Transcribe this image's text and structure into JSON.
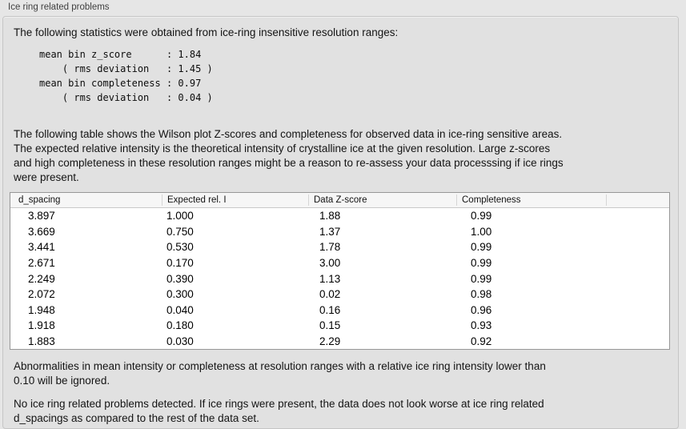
{
  "panel": {
    "title": "Ice ring related problems"
  },
  "stats": {
    "intro": "The following statistics were obtained from ice-ring insensitive resolution ranges:",
    "lines": [
      "mean bin z_score      : 1.84",
      "    ( rms deviation   : 1.45 )",
      "mean bin completeness : 0.97",
      "    ( rms deviation   : 0.04 )"
    ]
  },
  "table_intro": {
    "lines": [
      "The following table shows the Wilson plot Z-scores and completeness for observed data in ice-ring sensitive areas.",
      "The expected relative intensity is the theoretical intensity of crystalline ice at the given resolution. Large z-scores",
      "and high completeness in these resolution ranges might be a reason to re-assess your data processsing if ice rings",
      "were present."
    ]
  },
  "table": {
    "headers": [
      "d_spacing",
      "Expected rel. I",
      "Data Z-score",
      "Completeness",
      ""
    ],
    "rows": [
      [
        "3.897",
        "1.000",
        "1.88",
        "0.99"
      ],
      [
        "3.669",
        "0.750",
        "1.37",
        "1.00"
      ],
      [
        "3.441",
        "0.530",
        "1.78",
        "0.99"
      ],
      [
        "2.671",
        "0.170",
        "3.00",
        "0.99"
      ],
      [
        "2.249",
        "0.390",
        "1.13",
        "0.99"
      ],
      [
        "2.072",
        "0.300",
        "0.02",
        "0.98"
      ],
      [
        "1.948",
        "0.040",
        "0.16",
        "0.96"
      ],
      [
        "1.918",
        "0.180",
        "0.15",
        "0.93"
      ],
      [
        "1.883",
        "0.030",
        "2.29",
        "0.92"
      ]
    ]
  },
  "notes": {
    "ignore_lines": [
      "Abnormalities in mean intensity or completeness at resolution ranges with a relative ice ring intensity lower than",
      "0.10 will be ignored."
    ],
    "conclusion_lines": [
      "No ice ring related problems detected. If ice rings were present, the data does not look worse at ice ring related",
      "d_spacings as compared to the rest of the data set."
    ]
  },
  "colors": {
    "page_bg": "#e6e6e6",
    "box_bg": "#e1e1e1",
    "box_border": "#c5c5c5",
    "table_border": "#979797",
    "header_bg": "#f6f6f6",
    "header_divider": "#d5d5d5"
  }
}
